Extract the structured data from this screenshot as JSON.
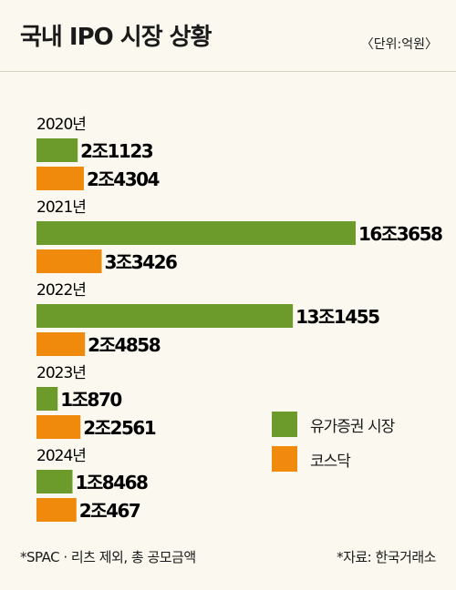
{
  "header": {
    "title": "국내 IPO 시장 상황",
    "unit": "〈단위:억원〉"
  },
  "chart_data": {
    "type": "bar",
    "orientation": "horizontal",
    "title": "국내 IPO 시장 상황",
    "unit": "억원",
    "categories": [
      "2020년",
      "2021년",
      "2022년",
      "2023년",
      "2024년"
    ],
    "series": [
      {
        "name": "유가증권 시장",
        "color": "#6c9a2b",
        "values": [
          21123,
          163658,
          131455,
          10870,
          18468
        ],
        "labels": [
          "2조1123",
          "16조3658",
          "13조1455",
          "1조870",
          "1조8468"
        ]
      },
      {
        "name": "코스닥",
        "color": "#f08a0c",
        "values": [
          24304,
          33426,
          24858,
          22561,
          20467
        ],
        "labels": [
          "2조4304",
          "3조3426",
          "2조4858",
          "2조2561",
          "2조467"
        ]
      }
    ],
    "legend_position": "bottom-right",
    "grid": false
  },
  "footer": {
    "note": "*SPAC · 리츠 제외, 총 공모금액",
    "source": "*자료: 한국거래소"
  }
}
